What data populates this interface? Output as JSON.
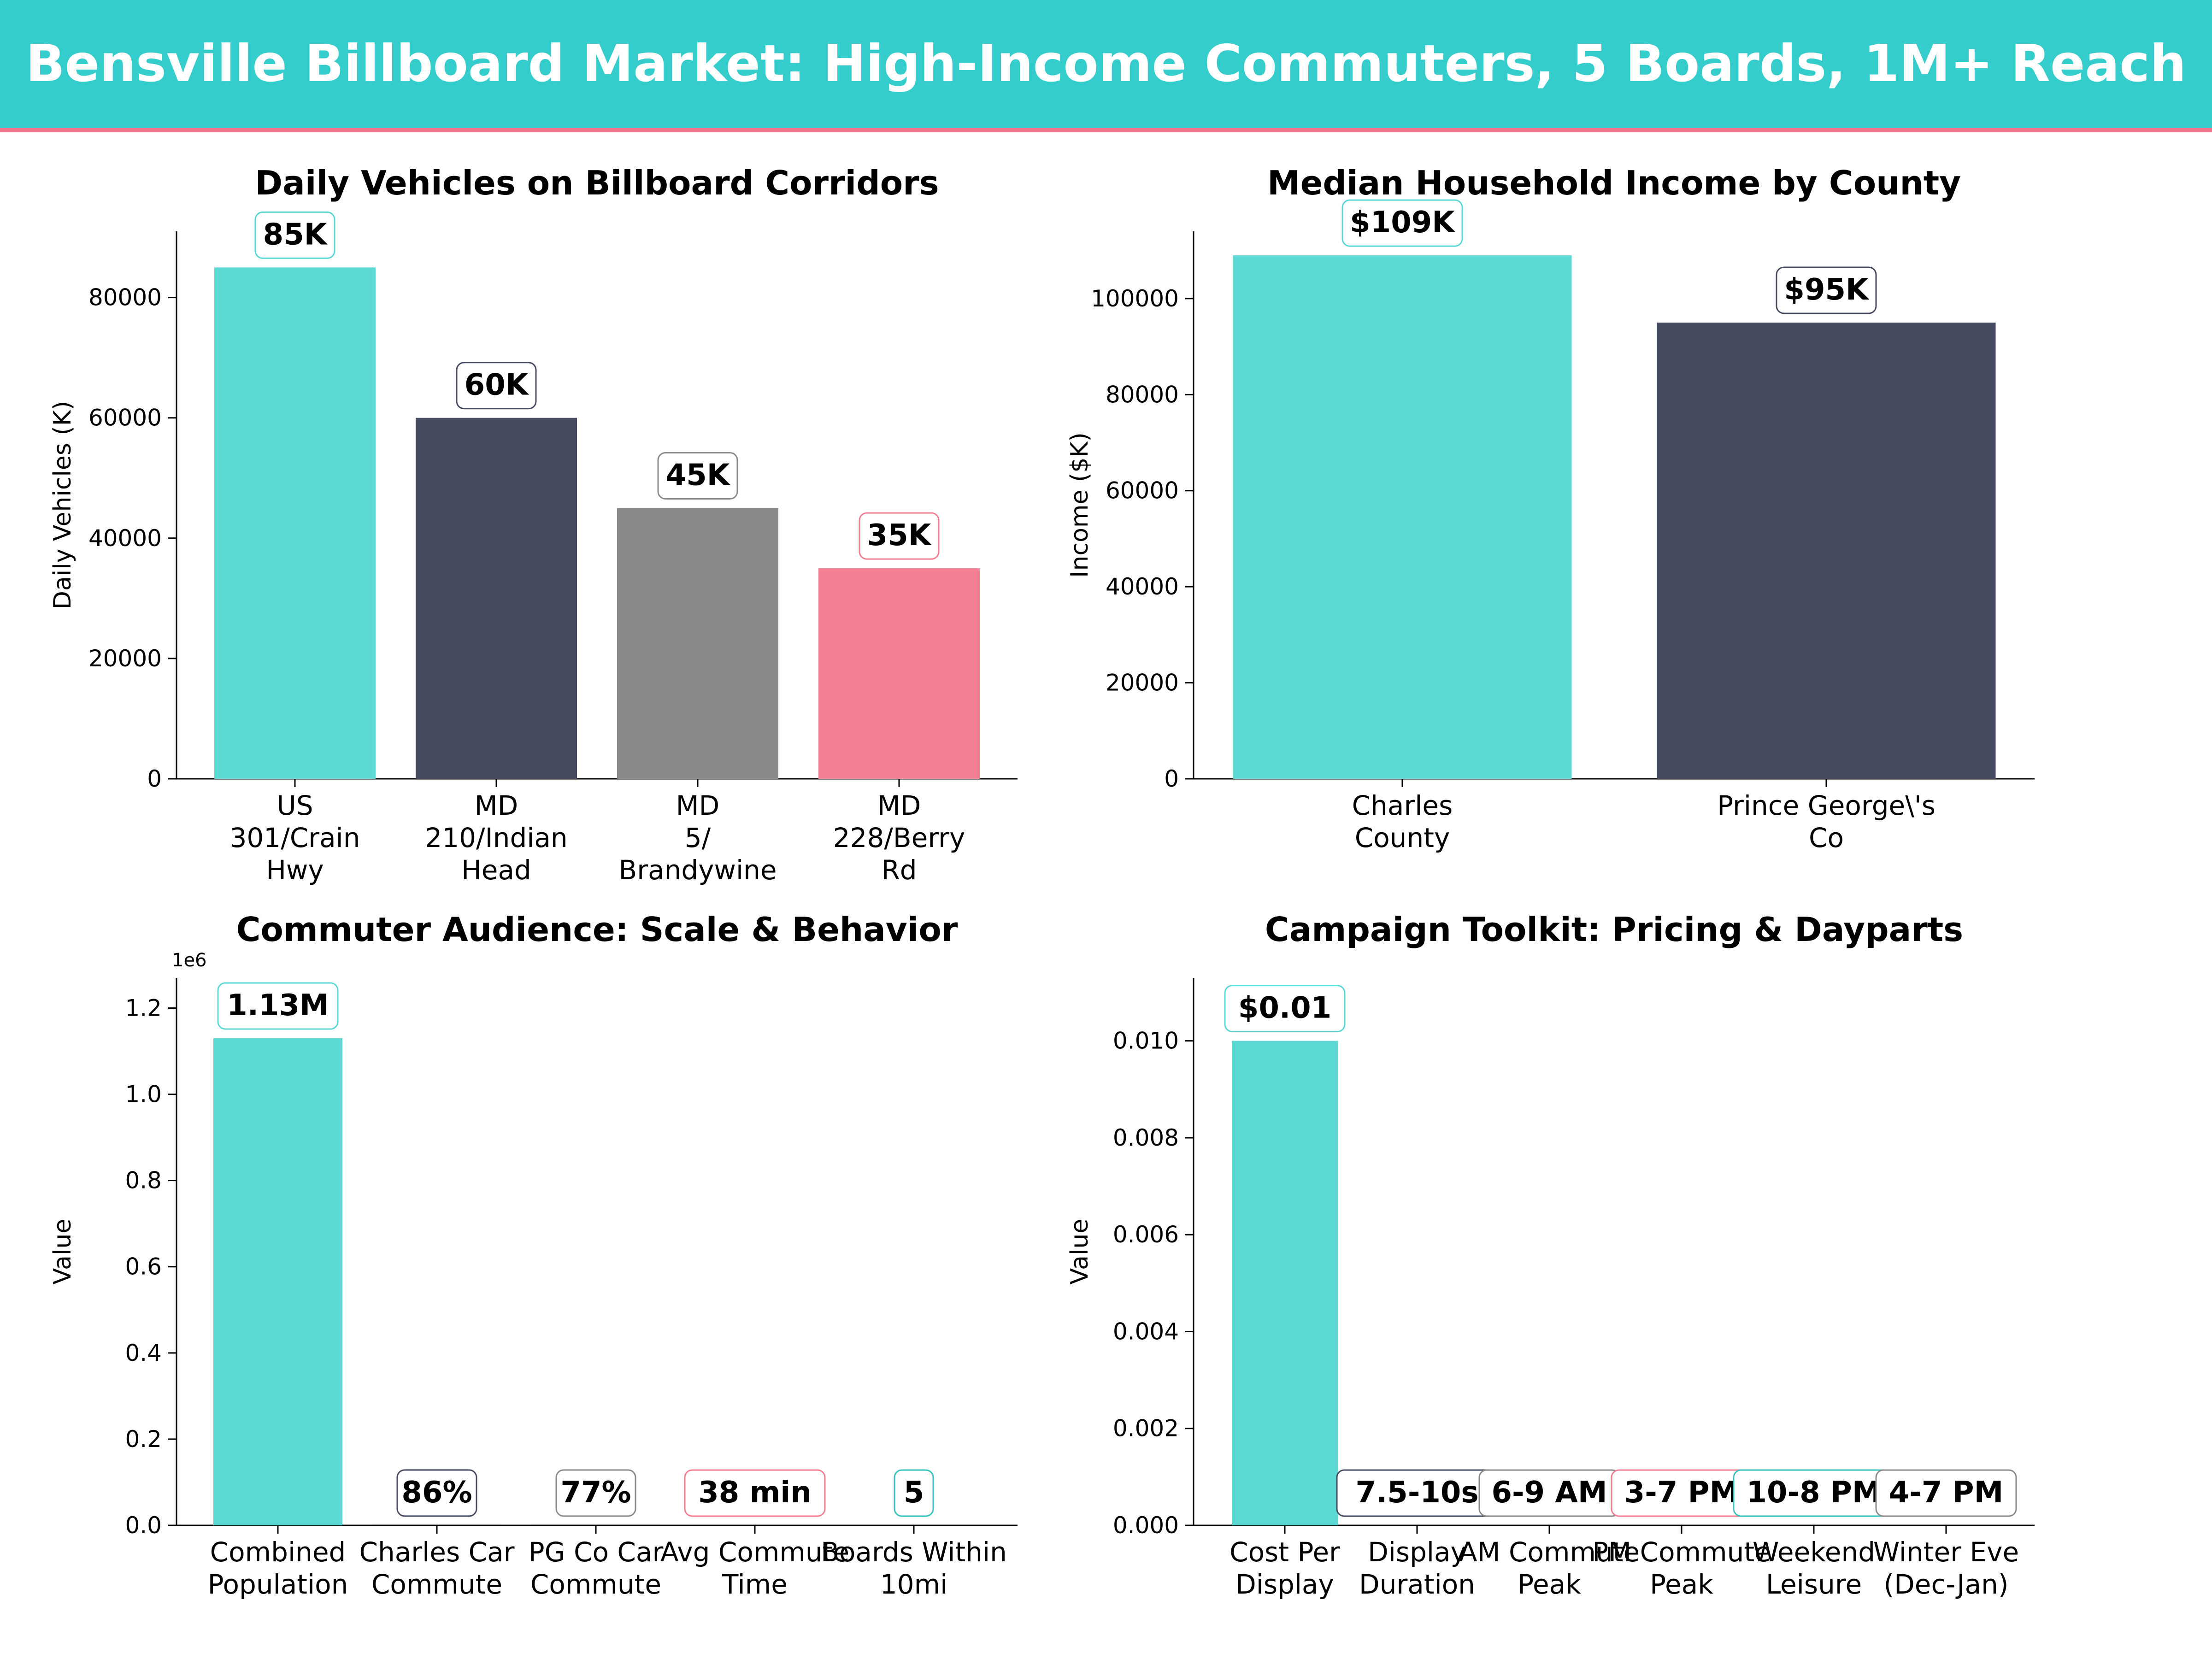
{
  "header": {
    "title": "Bensville Billboard Market: High-Income Commuters, 5 Boards, 1M+ Reach"
  },
  "colors": {
    "banner": "#35cccc",
    "banner_accent": "#f4788e",
    "teal": "#5cd8d4",
    "navy": "#464a60",
    "gray": "#898989",
    "pink": "#f47f93"
  },
  "chart_data": [
    {
      "type": "bar",
      "title": "Daily Vehicles on Billboard Corridors",
      "xlabel": "",
      "ylabel": "Daily Vehicles (K)",
      "categories": [
        "US 301/Crain Hwy",
        "MD 210/Indian Head",
        "MD 5/Brandywine",
        "MD 228/Berry Rd"
      ],
      "values": [
        85000,
        60000,
        45000,
        35000
      ],
      "data_labels": [
        "85K",
        "60K",
        "45K",
        "35K"
      ],
      "bar_colors": [
        "#5cd8d4",
        "#464a60",
        "#898989",
        "#f47f93"
      ],
      "yticks": [
        "0",
        "20000",
        "40000",
        "60000",
        "80000"
      ],
      "ylim": [
        0,
        91000
      ],
      "grid": false,
      "legend": "none"
    },
    {
      "type": "bar",
      "title": "Median Household Income by County",
      "xlabel": "",
      "ylabel": "Income ($K)",
      "categories": [
        "Charles County",
        "Prince George\\'s Co"
      ],
      "values": [
        109000,
        95000
      ],
      "data_labels": [
        "$109K",
        "$95K"
      ],
      "bar_colors": [
        "#5cd8d4",
        "#464a60"
      ],
      "yticks": [
        "0",
        "20000",
        "40000",
        "60000",
        "80000",
        "100000"
      ],
      "ylim": [
        0,
        114000
      ],
      "grid": false,
      "legend": "none"
    },
    {
      "type": "bar",
      "title": "Commuter Audience: Scale & Behavior",
      "xlabel": "",
      "ylabel": "Value",
      "axis_multiplier": "1e6",
      "categories": [
        "Combined Population",
        "Charles Car Commute",
        "PG Co Car Commute",
        "Avg Commute Time",
        "Boards Within 10mi"
      ],
      "values": [
        1130000,
        86,
        77,
        38,
        5
      ],
      "data_labels": [
        "1.13M",
        "86%",
        "77%",
        "38 min",
        "5"
      ],
      "bar_colors": [
        "#5cd8d4",
        "#464a60",
        "#898989",
        "#f47f93",
        "#35c4be"
      ],
      "yticks": [
        "0.0",
        "0.2",
        "0.4",
        "0.6",
        "0.8",
        "1.0",
        "1.2"
      ],
      "ylim": [
        0,
        1270000
      ],
      "grid": false,
      "legend": "none"
    },
    {
      "type": "bar",
      "title": "Campaign Toolkit: Pricing & Dayparts",
      "xlabel": "",
      "ylabel": "Value",
      "categories": [
        "Cost Per Display",
        "Display Duration",
        "AM Commute Peak",
        "PM Commute Peak",
        "Weekend Leisure",
        "Winter Eve (Dec-Jan)"
      ],
      "values": [
        0.01,
        0,
        0,
        0,
        0,
        0
      ],
      "data_labels": [
        "$0.01",
        "7.5-10s",
        "6-9 AM",
        "3-7 PM",
        "10-8 PM",
        "4-7 PM"
      ],
      "bar_colors": [
        "#5cd8d4",
        "#464a60",
        "#898989",
        "#f47f93",
        "#35c4be",
        "#8a8a8a"
      ],
      "yticks": [
        "0.000",
        "0.002",
        "0.004",
        "0.006",
        "0.008",
        "0.010"
      ],
      "ylim": [
        0,
        0.0113
      ],
      "grid": false,
      "legend": "none"
    }
  ]
}
